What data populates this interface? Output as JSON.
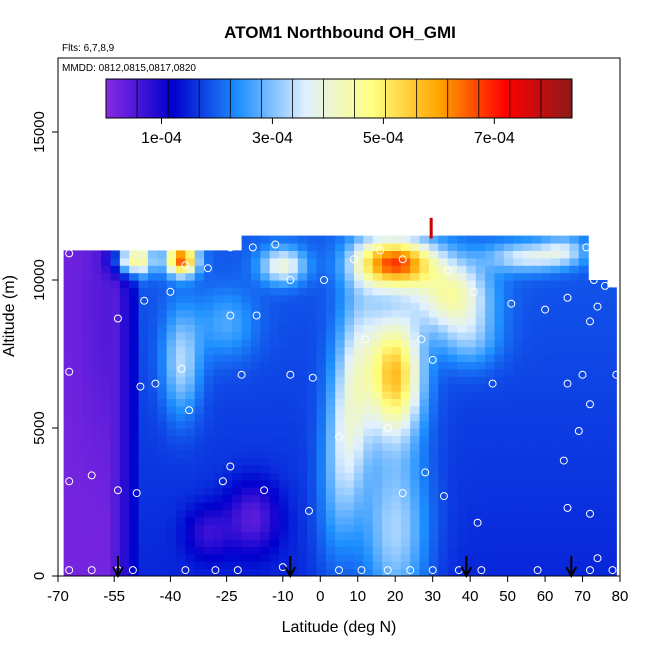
{
  "chart_data": {
    "type": "heatmap",
    "title": "ATOM1 Northbound OH_GMI",
    "annotations": [
      "Flts: 6,7,8,9",
      "MMDD: 0812,0815,0817,0820"
    ],
    "xlabel": "Latitude (deg N)",
    "ylabel": "Altitude (m)",
    "xlim": [
      -70,
      80
    ],
    "ylim": [
      0,
      17500
    ],
    "x_ticks": [
      {
        "label": "-70",
        "value": -70
      },
      {
        "label": "-55",
        "value": -55
      },
      {
        "label": "-40",
        "value": -40
      },
      {
        "label": "-25",
        "value": -25
      },
      {
        "label": "-10",
        "value": -10
      },
      {
        "label": "0",
        "value": 0
      },
      {
        "label": "10",
        "value": 10
      },
      {
        "label": "20",
        "value": 20
      },
      {
        "label": "30",
        "value": 30
      },
      {
        "label": "40",
        "value": 40
      },
      {
        "label": "50",
        "value": 50
      },
      {
        "label": "60",
        "value": 60
      },
      {
        "label": "70",
        "value": 70
      },
      {
        "label": "80",
        "value": 80
      }
    ],
    "y_ticks": [
      {
        "label": "0",
        "value": 0
      },
      {
        "label": "5000",
        "value": 5000
      },
      {
        "label": "10000",
        "value": 10000
      },
      {
        "label": "15000",
        "value": 15000
      }
    ],
    "colorbar": {
      "range": [
        0,
        0.00084
      ],
      "tick_values": [
        0.0001,
        0.0003,
        0.0005,
        0.0007
      ],
      "tick_labels": [
        "1e-04",
        "3e-04",
        "5e-04",
        "7e-04"
      ],
      "colors": [
        "#8a2be2",
        "#0000cd",
        "#1e90ff",
        "#e0f0ff",
        "#ffff80",
        "#ffa500",
        "#ff0000",
        "#8b1a1a"
      ]
    },
    "arrows_lat": [
      -54,
      -8,
      39,
      67
    ],
    "sample_points": [
      [
        -67,
        200
      ],
      [
        -61,
        200
      ],
      [
        -54,
        200
      ],
      [
        -50,
        200
      ],
      [
        -36,
        200
      ],
      [
        -28,
        200
      ],
      [
        -22,
        200
      ],
      [
        -10,
        300
      ],
      [
        5,
        200
      ],
      [
        11,
        200
      ],
      [
        18,
        200
      ],
      [
        24,
        200
      ],
      [
        30,
        200
      ],
      [
        37,
        200
      ],
      [
        43,
        200
      ],
      [
        58,
        200
      ],
      [
        72,
        200
      ],
      [
        78,
        200
      ],
      [
        74,
        600
      ],
      [
        -67,
        3200
      ],
      [
        -61,
        3400
      ],
      [
        -54,
        2900
      ],
      [
        -49,
        2800
      ],
      [
        -26,
        3200
      ],
      [
        -15,
        2900
      ],
      [
        -3,
        2200
      ],
      [
        22,
        2800
      ],
      [
        28,
        3500
      ],
      [
        33,
        2700
      ],
      [
        42,
        1800
      ],
      [
        66,
        2300
      ],
      [
        72,
        2100
      ],
      [
        -24,
        3700
      ],
      [
        -35,
        5600
      ],
      [
        -44,
        6500
      ],
      [
        -48,
        6400
      ],
      [
        -37,
        7000
      ],
      [
        -21,
        6800
      ],
      [
        -8,
        6800
      ],
      [
        -2,
        6700
      ],
      [
        5,
        4700
      ],
      [
        18,
        5000
      ],
      [
        30,
        7300
      ],
      [
        46,
        6500
      ],
      [
        65,
        3900
      ],
      [
        69,
        4900
      ],
      [
        72,
        5800
      ],
      [
        79,
        6800
      ],
      [
        66,
        6500
      ],
      [
        70,
        6800
      ],
      [
        -67,
        6900
      ],
      [
        -54,
        8700
      ],
      [
        -47,
        9300
      ],
      [
        -40,
        9600
      ],
      [
        -24,
        8800
      ],
      [
        -17,
        8800
      ],
      [
        12,
        8000
      ],
      [
        27,
        8000
      ],
      [
        41,
        9600
      ],
      [
        51,
        9200
      ],
      [
        60,
        9000
      ],
      [
        66,
        9400
      ],
      [
        72,
        8600
      ],
      [
        74,
        9100
      ],
      [
        -36,
        10500
      ],
      [
        -30,
        10400
      ],
      [
        -8,
        10000
      ],
      [
        1,
        10000
      ],
      [
        9,
        10700
      ],
      [
        16,
        11000
      ],
      [
        22,
        10700
      ],
      [
        34,
        10300
      ],
      [
        73,
        10000
      ],
      [
        76,
        9800
      ],
      [
        71,
        11100
      ],
      [
        -67,
        10900
      ],
      [
        -24,
        11100
      ],
      [
        -18,
        11100
      ],
      [
        -12,
        11200
      ]
    ]
  }
}
